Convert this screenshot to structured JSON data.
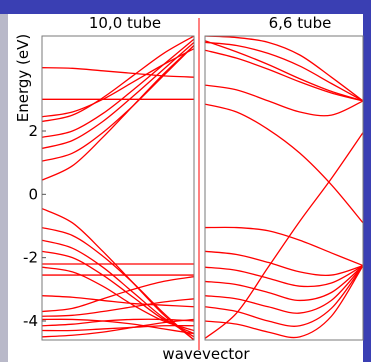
{
  "chart_data": [
    {
      "type": "line",
      "title": "10,0 tube",
      "ylabel": "Energy (eV)",
      "xlabel": "wavevector",
      "ylim": [
        -4.6,
        5.0
      ],
      "xlim": [
        0,
        1
      ],
      "yticks": [
        "-4",
        "-2",
        "0",
        "2"
      ],
      "yticks_values": [
        -4,
        -2,
        0,
        2
      ],
      "series": [
        {
          "x": [
            0,
            1
          ],
          "y": [
            3.0,
            3.0
          ]
        },
        {
          "x": [
            0,
            0.2,
            0.4,
            0.6,
            0.8,
            1
          ],
          "y": [
            4.0,
            3.98,
            3.9,
            3.82,
            3.74,
            3.7
          ]
        },
        {
          "x": [
            0,
            0.2,
            0.4,
            0.6,
            0.8,
            1
          ],
          "y": [
            2.45,
            2.6,
            3.0,
            3.55,
            4.1,
            4.6
          ]
        },
        {
          "x": [
            0,
            0.2,
            0.4,
            0.6,
            0.8,
            1
          ],
          "y": [
            2.3,
            2.5,
            3.05,
            3.75,
            4.45,
            5.0
          ]
        },
        {
          "x": [
            0,
            0.2,
            0.4,
            0.6,
            0.8,
            1
          ],
          "y": [
            1.8,
            2.0,
            2.55,
            3.3,
            4.1,
            4.9
          ]
        },
        {
          "x": [
            0,
            0.2,
            0.4,
            0.6,
            0.8,
            1
          ],
          "y": [
            1.45,
            1.7,
            2.3,
            3.1,
            3.95,
            4.8
          ]
        },
        {
          "x": [
            0,
            0.2,
            0.4,
            0.6,
            0.8,
            1
          ],
          "y": [
            1.05,
            1.3,
            1.95,
            2.8,
            3.75,
            4.7
          ]
        },
        {
          "x": [
            0,
            0.2,
            0.4,
            0.6,
            0.8,
            1
          ],
          "y": [
            0.45,
            0.9,
            1.8,
            2.8,
            3.8,
            4.7
          ]
        },
        {
          "x": [
            0,
            0.2,
            0.4,
            0.6,
            0.8,
            1
          ],
          "y": [
            -0.45,
            -0.9,
            -1.8,
            -2.8,
            -3.8,
            -4.6
          ]
        },
        {
          "x": [
            0,
            0.2,
            0.4,
            0.6,
            0.8,
            1
          ],
          "y": [
            -1.05,
            -1.3,
            -1.95,
            -2.8,
            -3.75,
            -4.6
          ]
        },
        {
          "x": [
            0,
            0.2,
            0.4,
            0.6,
            0.8,
            1
          ],
          "y": [
            -1.45,
            -1.7,
            -2.3,
            -3.1,
            -3.9,
            -4.5
          ]
        },
        {
          "x": [
            0,
            0.2,
            0.4,
            0.6,
            0.8,
            1
          ],
          "y": [
            -1.8,
            -2.0,
            -2.55,
            -3.25,
            -3.95,
            -4.4
          ]
        },
        {
          "x": [
            0,
            0.2,
            0.4,
            0.6,
            0.8,
            1
          ],
          "y": [
            -2.3,
            -2.45,
            -2.9,
            -3.5,
            -4.0,
            -4.3
          ]
        },
        {
          "x": [
            0,
            1
          ],
          "y": [
            -2.2,
            -2.2
          ]
        },
        {
          "x": [
            0,
            1
          ],
          "y": [
            -2.55,
            -2.55
          ]
        },
        {
          "x": [
            0,
            0.2,
            0.4,
            0.6,
            0.8,
            1
          ],
          "y": [
            -3.7,
            -3.6,
            -3.3,
            -3.0,
            -2.75,
            -2.6
          ]
        },
        {
          "x": [
            0,
            0.2,
            0.4,
            0.6,
            0.8,
            1
          ],
          "y": [
            -3.2,
            -3.25,
            -3.35,
            -3.45,
            -3.5,
            -3.55
          ]
        },
        {
          "x": [
            0,
            0.2,
            0.4,
            0.6,
            0.8,
            1
          ],
          "y": [
            -3.85,
            -3.82,
            -3.7,
            -3.55,
            -3.4,
            -3.3
          ]
        },
        {
          "x": [
            0,
            0.2,
            0.4,
            0.6,
            0.8,
            1
          ],
          "y": [
            -3.95,
            -3.95,
            -4.0,
            -4.1,
            -4.25,
            -4.4
          ]
        },
        {
          "x": [
            0,
            0.2,
            0.4,
            0.6,
            0.8,
            1
          ],
          "y": [
            -4.15,
            -4.1,
            -4.0,
            -3.95,
            -3.95,
            -4.0
          ]
        },
        {
          "x": [
            0,
            0.2,
            0.4,
            0.6,
            0.8,
            1
          ],
          "y": [
            -4.3,
            -4.3,
            -4.25,
            -4.2,
            -4.15,
            -4.15
          ]
        },
        {
          "x": [
            0,
            0.2,
            0.4,
            0.6,
            0.8,
            1
          ],
          "y": [
            -4.5,
            -4.45,
            -4.35,
            -4.2,
            -4.05,
            -3.95
          ]
        }
      ]
    },
    {
      "type": "line",
      "title": "6,6 tube",
      "xlabel": "wavevector",
      "ylim": [
        -4.6,
        5.0
      ],
      "xlim": [
        0,
        1
      ],
      "series": [
        {
          "x": [
            0,
            0.2,
            0.4,
            0.6,
            0.8,
            1
          ],
          "y": [
            4.85,
            4.5,
            4.1,
            3.65,
            3.25,
            2.95
          ]
        },
        {
          "x": [
            0,
            0.2,
            0.4,
            0.6,
            0.8,
            1
          ],
          "y": [
            4.55,
            4.3,
            3.95,
            3.55,
            3.2,
            2.95
          ]
        },
        {
          "x": [
            0,
            0.2,
            0.4,
            0.6,
            0.8,
            1
          ],
          "y": [
            4.8,
            4.7,
            4.45,
            4.05,
            3.5,
            2.95
          ]
        },
        {
          "x": [
            0,
            0.2,
            0.4,
            0.6,
            0.8,
            1
          ],
          "y": [
            5.0,
            4.95,
            4.8,
            4.4,
            3.7,
            2.95
          ]
        },
        {
          "x": [
            0,
            0.2,
            0.4,
            0.6,
            0.8,
            1
          ],
          "y": [
            3.45,
            3.3,
            2.95,
            2.6,
            2.5,
            2.95
          ]
        },
        {
          "x": [
            0,
            0.2,
            0.4,
            0.6,
            0.8,
            1
          ],
          "y": [
            2.85,
            2.6,
            2.05,
            1.3,
            0.3,
            -0.9
          ]
        },
        {
          "x": [
            0,
            0.2,
            0.4,
            0.6,
            0.8,
            1
          ],
          "y": [
            -4.55,
            -3.75,
            -2.3,
            -0.85,
            0.5,
            1.95
          ]
        },
        {
          "x": [
            0,
            0.2,
            0.4,
            0.6,
            0.8,
            1
          ],
          "y": [
            -1.05,
            -1.05,
            -1.15,
            -1.45,
            -1.85,
            -2.25
          ]
        },
        {
          "x": [
            0,
            0.2,
            0.4,
            0.6,
            0.8,
            1
          ],
          "y": [
            -1.8,
            -1.9,
            -2.15,
            -2.45,
            -2.55,
            -2.25
          ]
        },
        {
          "x": [
            0,
            0.2,
            0.4,
            0.6,
            0.8,
            1
          ],
          "y": [
            -2.3,
            -2.4,
            -2.65,
            -2.9,
            -2.8,
            -2.25
          ]
        },
        {
          "x": [
            0,
            0.2,
            0.4,
            0.6,
            0.8,
            1
          ],
          "y": [
            -2.75,
            -2.85,
            -3.1,
            -3.35,
            -3.1,
            -2.25
          ]
        },
        {
          "x": [
            0,
            0.2,
            0.4,
            0.6,
            0.8,
            1
          ],
          "y": [
            -3.2,
            -3.3,
            -3.55,
            -3.75,
            -3.35,
            -2.25
          ]
        },
        {
          "x": [
            0,
            0.2,
            0.4,
            0.6,
            0.8,
            1
          ],
          "y": [
            -3.55,
            -3.7,
            -4.0,
            -4.15,
            -3.6,
            -2.25
          ]
        },
        {
          "x": [
            0,
            0.2,
            0.4,
            0.6,
            0.8,
            1
          ],
          "y": [
            -4.0,
            -4.1,
            -4.35,
            -4.5,
            -3.85,
            -2.25
          ]
        }
      ]
    }
  ],
  "colors": {
    "line": "#ff0000",
    "background": "#3a3fb3",
    "panel": "#ffffff",
    "sidebar": "#b9b9c9"
  }
}
